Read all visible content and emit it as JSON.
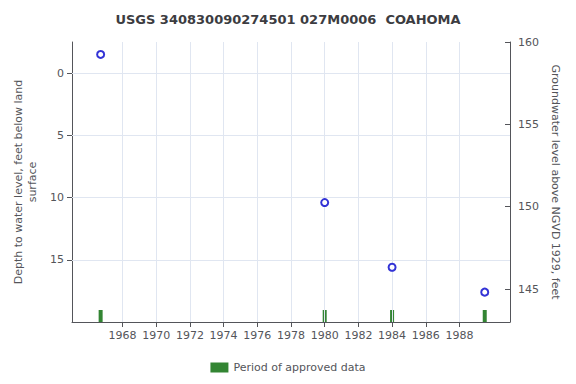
{
  "chart_data": {
    "type": "scatter",
    "title": "USGS 340830090274501 027M0006  COAHOMA",
    "x": [
      1966.7,
      1980.0,
      1984.0,
      1989.5
    ],
    "series": [
      {
        "color": "#0000cc",
        "marker": "circle",
        "values": [
          -1.5,
          10.4,
          15.6,
          17.6
        ]
      },
      {
        "name": "Period of approved data",
        "type": "rug",
        "color": "#006600",
        "x": [
          1966.7,
          1980.0,
          1984.0,
          1989.5
        ]
      }
    ],
    "xlim": [
      1965.0,
      1991.0
    ],
    "xticks": [
      1968,
      1970,
      1972,
      1974,
      1976,
      1978,
      1980,
      1982,
      1984,
      1986,
      1988
    ],
    "ylim": [
      20.0,
      -2.5
    ],
    "yticks": [
      0,
      5,
      10,
      15
    ],
    "ylabel": "Depth to water level, feet below land\nsurface",
    "y2lim": [
      143.0,
      160.0
    ],
    "y2ticks": [
      160,
      155,
      150,
      145
    ],
    "y2label": "Groundwater level above NGVD 1929, feet",
    "grid": true,
    "legend": "bottom"
  }
}
